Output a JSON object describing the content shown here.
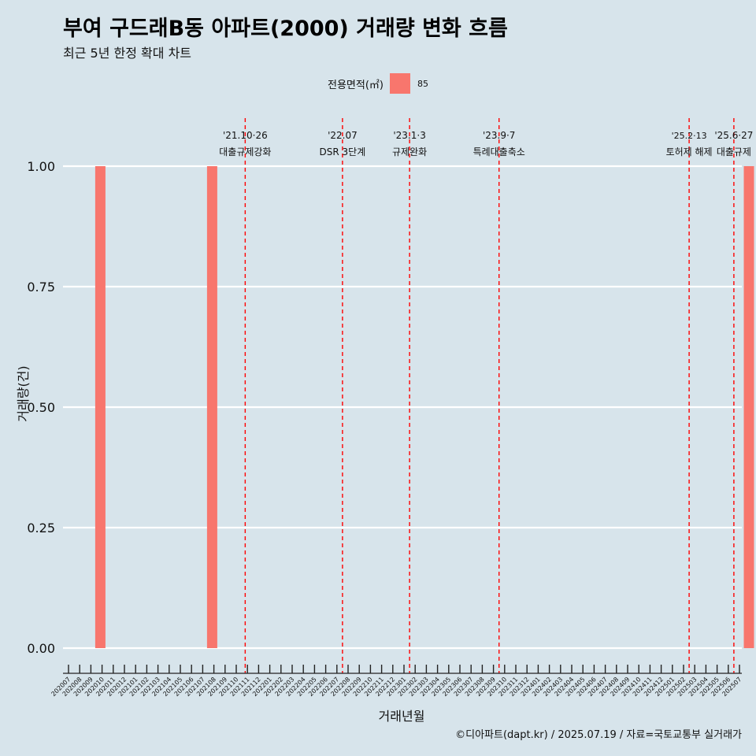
{
  "title": "부여 구드래B동 아파트(2000) 거래량 변화 흐름",
  "subtitle": "최근 5년 한정 확대 차트",
  "caption": "©디아파트(dapt.kr) / 2025.07.19 / 자료=국토교통부 실거래가",
  "colors": {
    "background": "#d7e4eb",
    "bar": "#f8766d",
    "event_line": "#ff0000",
    "grid": "#ffffff"
  },
  "chart_data": {
    "type": "bar",
    "xlabel": "거래년월",
    "ylabel": "거래량(건)",
    "ylim": [
      0,
      1
    ],
    "yticks": [
      "0.00",
      "0.25",
      "0.50",
      "0.75",
      "1.00"
    ],
    "legend": {
      "title": "전용면적(㎡)",
      "placement": "top",
      "entries": [
        {
          "label": "85",
          "color": "#f8766d"
        }
      ]
    },
    "categories": [
      "202007",
      "202008",
      "202009",
      "202010",
      "202011",
      "202012",
      "202101",
      "202102",
      "202103",
      "202104",
      "202105",
      "202106",
      "202107",
      "202108",
      "202109",
      "202110",
      "202111",
      "202112",
      "202201",
      "202202",
      "202203",
      "202204",
      "202205",
      "202206",
      "202207",
      "202208",
      "202209",
      "202210",
      "202211",
      "202212",
      "202301",
      "202302",
      "202303",
      "202304",
      "202305",
      "202306",
      "202307",
      "202308",
      "202309",
      "202310",
      "202311",
      "202312",
      "202401",
      "202402",
      "202403",
      "202404",
      "202405",
      "202406",
      "202407",
      "202408",
      "202409",
      "202410",
      "202411",
      "202412",
      "202501",
      "202502",
      "202503",
      "202504",
      "202505",
      "202506",
      "202507"
    ],
    "series": [
      {
        "name": "85",
        "values": [
          0,
          0,
          1,
          0,
          0,
          0,
          0,
          0,
          0,
          0,
          0,
          0,
          1,
          0,
          0,
          0,
          0,
          0,
          0,
          0,
          0,
          0,
          0,
          0,
          0,
          0,
          0,
          0,
          0,
          0,
          0,
          0,
          0,
          0,
          0,
          0,
          0,
          0,
          0,
          0,
          0,
          0,
          0,
          0,
          0,
          0,
          0,
          0,
          0,
          0,
          0,
          0,
          0,
          0,
          0,
          0,
          0,
          0,
          0,
          0,
          1
        ]
      }
    ],
    "events": [
      {
        "date": "2021-10-26",
        "month_index": 15.8,
        "line1": "'21.10·26",
        "line2": "대출규제강화"
      },
      {
        "date": "2022-07",
        "month_index": 24.5,
        "line1": "'22.07",
        "line2": "DSR 3단계"
      },
      {
        "date": "2023-01-03",
        "month_index": 30.5,
        "line1": "'23.1·3",
        "line2": "규제완화"
      },
      {
        "date": "2023-09-07",
        "month_index": 38.5,
        "line1": "'23.9·7",
        "line2": "특례대출축소"
      },
      {
        "date": "2025-02-13",
        "month_index": 55.5,
        "line1": "'25.2·13",
        "line2": "토허제 해제"
      },
      {
        "date": "2025-06-27",
        "month_index": 59.5,
        "line1": "'25.6·27",
        "line2": "대출규제"
      }
    ]
  }
}
